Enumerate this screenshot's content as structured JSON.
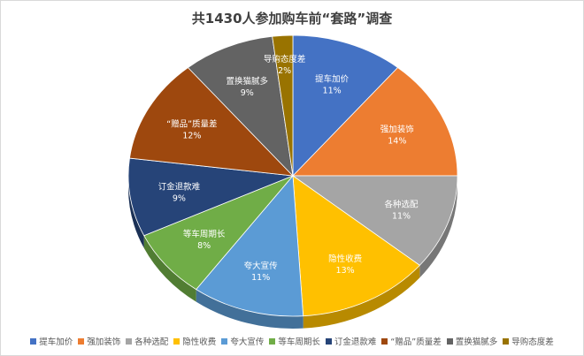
{
  "chart_data": {
    "type": "pie",
    "title": "共1430人参加购车前“套路”调查",
    "categories": [
      "提车加价",
      "强加装饰",
      "各种选配",
      "隐性收费",
      "夸大宣传",
      "等车周期长",
      "订金退款难",
      "“赠品”质量差",
      "置换猫腻多",
      "导购态度差"
    ],
    "values": [
      11,
      14,
      11,
      13,
      11,
      8,
      9,
      12,
      9,
      2
    ],
    "value_labels": [
      "11%",
      "14%",
      "11%",
      "13%",
      "11%",
      "8%",
      "9%",
      "12%",
      "9%",
      "2%"
    ],
    "colors": [
      "#4472C4",
      "#ED7D31",
      "#A5A5A5",
      "#FFC000",
      "#5B9BD5",
      "#70AD47",
      "#264478",
      "#9E480E",
      "#636363",
      "#997300"
    ],
    "legend_position": "bottom",
    "style": "3d"
  }
}
